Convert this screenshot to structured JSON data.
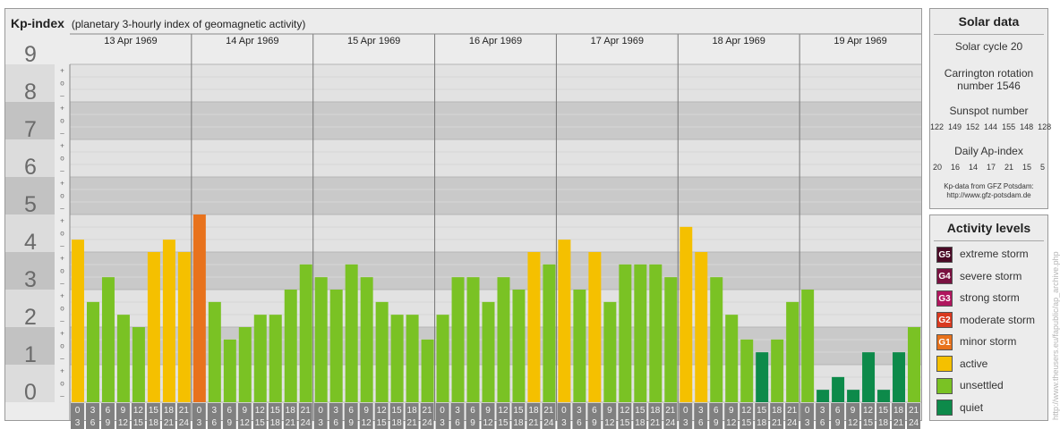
{
  "header": {
    "title": "Kp-index",
    "subtitle": "(planetary 3-hourly index of geomagnetic activity)"
  },
  "chart_data": {
    "type": "bar",
    "ylim": [
      0,
      9
    ],
    "y_ticks": [
      "0",
      "1",
      "2",
      "3",
      "4",
      "5",
      "6",
      "7",
      "8",
      "9"
    ],
    "minor_tick_labels": [
      "–",
      "o",
      "+"
    ],
    "days": [
      "13 Apr 1969",
      "14 Apr 1969",
      "15 Apr 1969",
      "16 Apr 1969",
      "17 Apr 1969",
      "18 Apr 1969",
      "19 Apr 1969"
    ],
    "interval_top": [
      "0",
      "3",
      "6",
      "9",
      "12",
      "15",
      "18",
      "21"
    ],
    "interval_bottom": [
      "3",
      "6",
      "9",
      "12",
      "15",
      "18",
      "21",
      "24"
    ],
    "series": [
      {
        "values": [
          4.33,
          2.67,
          3.33,
          2.33,
          2.0,
          4.0,
          4.33,
          4.0,
          5.0,
          2.67,
          1.67,
          2.0,
          2.33,
          2.33,
          3.0,
          3.67,
          3.33,
          3.0,
          3.67,
          3.33,
          2.67,
          2.33,
          2.33,
          1.67,
          2.33,
          3.33,
          3.33,
          2.67,
          3.33,
          3.0,
          4.0,
          3.67,
          4.33,
          3.0,
          4.0,
          2.67,
          3.67,
          3.67,
          3.67,
          3.33,
          4.67,
          4.0,
          3.33,
          2.33,
          1.67,
          1.33,
          1.67,
          2.67,
          3.0,
          0.33,
          0.67,
          0.33,
          1.33,
          0.33,
          1.33,
          2.0
        ]
      }
    ]
  },
  "solar": {
    "title": "Solar data",
    "cycle": "Solar cycle 20",
    "carrington_1": "Carrington rotation",
    "carrington_2": "number 1546",
    "sunspot_label": "Sunspot number",
    "sunspot_values": "122  149  152  144  155  148  128",
    "ap_label": "Daily Ap-index",
    "ap_values": "20    16    14    17    21    15    5",
    "source_1": "Kp-data from GFZ Potsdam:",
    "source_2": "http://www.gfz-potsdam.de"
  },
  "levels": {
    "title": "Activity levels",
    "items": [
      {
        "code": "G5",
        "label": "extreme storm",
        "color": "#4a0a26"
      },
      {
        "code": "G4",
        "label": "severe storm",
        "color": "#7a1040"
      },
      {
        "code": "G3",
        "label": "strong storm",
        "color": "#b0165e"
      },
      {
        "code": "G2",
        "label": "moderate storm",
        "color": "#d9391f"
      },
      {
        "code": "G1",
        "label": "minor storm",
        "color": "#e8721c"
      },
      {
        "code": "",
        "label": "active",
        "color": "#f5c000"
      },
      {
        "code": "",
        "label": "unsettled",
        "color": "#7ac224"
      },
      {
        "code": "",
        "label": "quiet",
        "color": "#0d8a4a"
      }
    ]
  },
  "watermark": "http://www.theusers.eu/fapublic/ap_archive.php"
}
